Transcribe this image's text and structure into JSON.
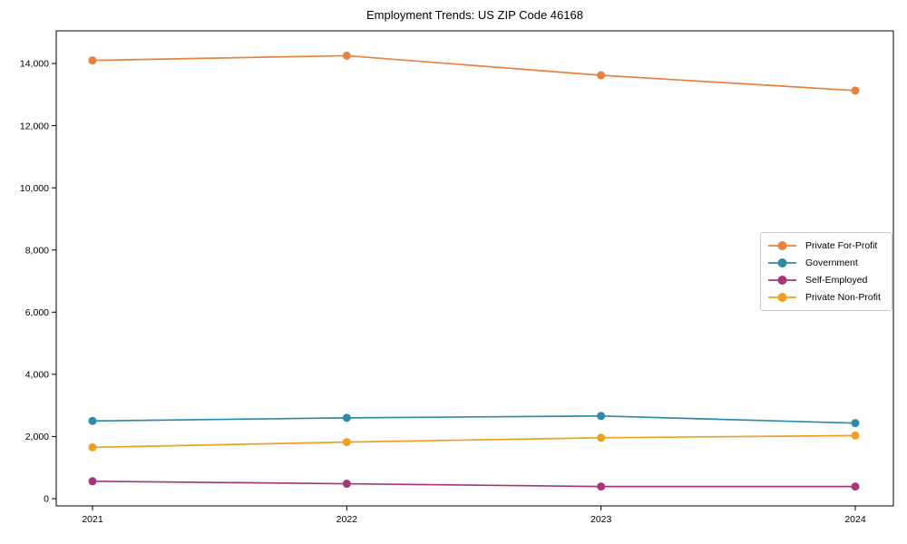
{
  "title": "Employment Trends: US ZIP Code 46168",
  "chart_data": {
    "type": "line",
    "title": "Employment Trends: US ZIP Code 46168",
    "xlabel": "",
    "ylabel": "",
    "categories": [
      "2021",
      "2022",
      "2023",
      "2024"
    ],
    "series": [
      {
        "name": "Private For-Profit",
        "color": "#E8823E",
        "values": [
          14100,
          14250,
          13620,
          13130
        ]
      },
      {
        "name": "Government",
        "color": "#2E8BA8",
        "values": [
          2500,
          2600,
          2660,
          2430
        ]
      },
      {
        "name": "Self-Employed",
        "color": "#A53778",
        "values": [
          560,
          480,
          390,
          390
        ]
      },
      {
        "name": "Private Non-Profit",
        "color": "#EFA023",
        "values": [
          1650,
          1820,
          1960,
          2030
        ]
      }
    ],
    "yticks": [
      0,
      2000,
      4000,
      6000,
      8000,
      10000,
      12000,
      14000
    ],
    "ytick_labels": [
      "0",
      "2,000",
      "4,000",
      "6,000",
      "8,000",
      "10,000",
      "12,000",
      "14,000"
    ],
    "ylim": [
      -250,
      15100
    ],
    "grid": false,
    "legend_position": "right",
    "axis_color": "#000000",
    "text_color": "#000000"
  }
}
